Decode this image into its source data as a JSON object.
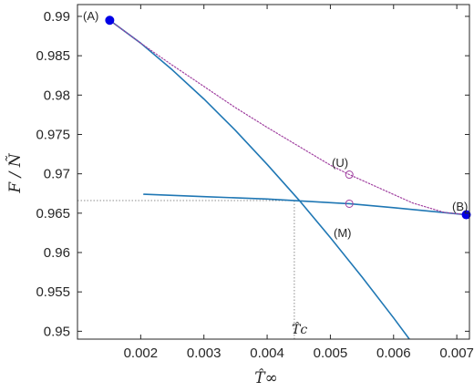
{
  "chart_data": {
    "type": "line",
    "xlabel": "T̂∞",
    "ylabel": "F / Ñ",
    "xlim": [
      0.001,
      0.0072
    ],
    "ylim": [
      0.949,
      0.9915
    ],
    "xticks": [
      "0.002",
      "0.003",
      "0.004",
      "0.005",
      "0.006",
      "0.007"
    ],
    "xtick_values": [
      0.002,
      0.003,
      0.004,
      0.005,
      0.006,
      0.007
    ],
    "yticks": [
      "0.99",
      "0.985",
      "0.98",
      "0.975",
      "0.97",
      "0.965",
      "0.96",
      "0.955",
      "0.95"
    ],
    "ytick_values": [
      0.99,
      0.985,
      0.98,
      0.975,
      0.97,
      0.965,
      0.96,
      0.955,
      0.95
    ],
    "grid": false,
    "series": [
      {
        "color": "#1f77b4",
        "style": "solid",
        "x": [
          0.00151,
          0.002,
          0.0025,
          0.003,
          0.0035,
          0.004,
          0.0045,
          0.005,
          0.0055,
          0.006,
          0.0065
        ],
        "y": [
          0.9895,
          0.9866,
          0.9832,
          0.9795,
          0.9755,
          0.9712,
          0.9667,
          0.9619,
          0.9569,
          0.9517,
          0.9463
        ]
      },
      {
        "color": "#1f77b4",
        "style": "solid",
        "x": [
          0.00205,
          0.003,
          0.004,
          0.0053,
          0.006,
          0.00715
        ],
        "y": [
          0.9674,
          0.9671,
          0.9668,
          0.9662,
          0.9657,
          0.9648
        ]
      },
      {
        "color": "#a040a0",
        "style": "dotted",
        "x": [
          0.00151,
          0.002,
          0.0025,
          0.003,
          0.0035,
          0.004,
          0.0045,
          0.005,
          0.0053,
          0.0058,
          0.0063,
          0.0068,
          0.00715
        ],
        "y": [
          0.9895,
          0.9866,
          0.9838,
          0.9811,
          0.9784,
          0.9759,
          0.9735,
          0.9711,
          0.9699,
          0.9681,
          0.9663,
          0.9651,
          0.9648
        ]
      }
    ],
    "markers": {
      "filled": [
        {
          "label": "(A)",
          "x": 0.00151,
          "y": 0.9895,
          "color": "#0000e6"
        },
        {
          "label": "(B)",
          "x": 0.00715,
          "y": 0.9648,
          "color": "#0000e6"
        }
      ],
      "open": [
        {
          "label": "(U)",
          "x": 0.0053,
          "y": 0.9699,
          "color": "#a040a0"
        },
        {
          "label": "",
          "x": 0.0053,
          "y": 0.9662,
          "color": "#a040a0"
        }
      ]
    },
    "annotations": {
      "A": "(A)",
      "B": "(B)",
      "U": "(U)",
      "M": "(M)",
      "Tc": "T̂c"
    },
    "critical_point": {
      "x": 0.00443,
      "y": 0.9666
    }
  }
}
